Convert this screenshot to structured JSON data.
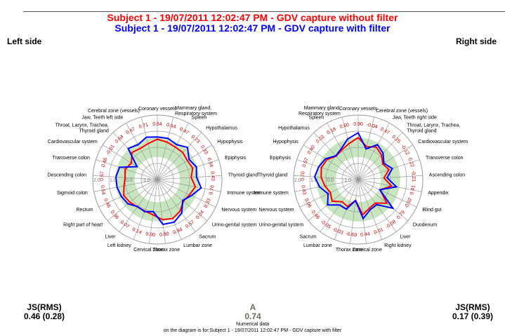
{
  "titles": {
    "without_filter": "Subject 1 - 19/07/2011 12:02:47 PM - GDV capture without filter",
    "with_filter": "Subject 1 - 19/07/2011 12:02:47 PM - GDV capture with filter"
  },
  "colors": {
    "without_filter": "#ff0000",
    "with_filter": "#0000ff",
    "band": "#c7e6c0",
    "grid": "#9a9a9a",
    "value_labels": "#cc0000",
    "center_text": "#6e6e5a"
  },
  "side_labels": {
    "left": "Left side",
    "right": "Right side"
  },
  "summary": {
    "left": {
      "label": "JS(RMS)",
      "value": "0.46 (0.28)"
    },
    "right": {
      "label": "JS(RMS)",
      "value": "0.17 (0.39)"
    },
    "center": {
      "label": "A",
      "value": "0.74",
      "caption": "Numerical data",
      "note": "on the diagram is for:Subject 1 - 19/07/2011 12:02:47 PM - GDV capture with filter"
    }
  },
  "chart_data": [
    {
      "type": "radar",
      "title": "Left side",
      "scale_labels": [
        "2.0",
        "1.0",
        "0.0",
        "-1.0"
      ],
      "band": [
        -0.6,
        0.6
      ],
      "categories": [
        "Coronary vessels",
        "Mammary gland, Respiratory system",
        "Spleen",
        "Hypothalamus",
        "Hypophysis",
        "Epiphysis",
        "Thyroid gland",
        "Immune system",
        "Nervous system",
        "Urino-genital system",
        "Sacrum",
        "Lumbar zone",
        "Thorax zone",
        "Cervical zone",
        "Left kidney",
        "Liver",
        "Right part of heart",
        "Rectum",
        "Sigmoid colon",
        "Descending colon",
        "Transverse colon",
        "Cardiovascular system",
        "Throat, Larynx, Trachea, Thyroid gland",
        "Jaw, Teeth left side",
        "Cerebral zone (vessels)"
      ],
      "value_labels": [
        "0.64",
        "0.64",
        "0.47",
        "0.73",
        "0.33",
        "0.54",
        "0.43",
        "0.76",
        "0.33",
        "0.04",
        "0.57",
        "0.84",
        "0.80",
        "0.00",
        "0.14",
        "0.07",
        "0.36",
        "0.46",
        "0.54",
        "0.57",
        "0.46",
        "-0.51",
        "0.64",
        "0.47",
        "0.71"
      ],
      "series": [
        {
          "name": "GDV capture without filter",
          "values": [
            0.5,
            0.4,
            0.3,
            0.3,
            0.2,
            0.3,
            0.1,
            0.4,
            0.2,
            0.1,
            0.4,
            0.6,
            0.5,
            0.2,
            0.1,
            0.1,
            0.2,
            0.3,
            0.1,
            0.0,
            0.1,
            -0.1,
            0.3,
            0.2,
            0.3
          ]
        },
        {
          "name": "GDV capture with filter",
          "values": [
            0.64,
            0.64,
            0.47,
            0.73,
            0.33,
            0.54,
            0.43,
            0.76,
            0.33,
            0.04,
            0.57,
            0.84,
            0.8,
            0.0,
            0.14,
            0.07,
            0.36,
            0.46,
            0.54,
            0.57,
            0.46,
            -0.51,
            0.64,
            0.47,
            0.71
          ]
        }
      ]
    },
    {
      "type": "radar",
      "title": "Right side",
      "scale_labels": [
        "2.0",
        "1.0",
        "0.0",
        "-1.0"
      ],
      "band": [
        -0.6,
        0.6
      ],
      "categories": [
        "Coronary vessels",
        "Cerebral zone (vessels)",
        "Jaw, Teeth right side",
        "Throat, Larynx, Trachea, Thyroid gland",
        "Cardiovascular system",
        "Transverse colon",
        "Ascending colon",
        "Appendix",
        "Blind gut",
        "Duodenum",
        "Liver",
        "Right kidney",
        "Cervical zone",
        "Thorax zone",
        "Lumbar zone",
        "Sacrum",
        "Urino-genital system",
        "Nervous system",
        "Immune system",
        "Thyroid gland",
        "Epiphysis",
        "Hypophysis",
        "Hypothalamus",
        "Spleen",
        "Mammary gland, Respiratory system"
      ],
      "value_labels": [
        "0.90",
        "-0.04",
        "0.47",
        "0.25",
        "-0.12",
        "0.22",
        "-0.21",
        "0.41",
        "-0.52",
        "0.79",
        "-0.08",
        "0.01",
        "0.44",
        "-0.69",
        "-0.03",
        "-0.05",
        "0.46",
        "0.06",
        "0.43",
        "0.70",
        "0.57",
        "0.40",
        "0.02",
        "0.18",
        "0.60"
      ],
      "series": [
        {
          "name": "GDV capture without filter",
          "values": [
            0.6,
            0.1,
            0.3,
            0.1,
            -0.2,
            0.0,
            -0.4,
            0.1,
            -0.5,
            0.3,
            -0.2,
            -0.1,
            0.2,
            -0.7,
            -0.2,
            -0.3,
            0.1,
            -0.1,
            0.1,
            0.3,
            0.4,
            0.3,
            0.0,
            0.1,
            0.3
          ]
        },
        {
          "name": "GDV capture with filter",
          "values": [
            0.9,
            -0.04,
            0.47,
            0.25,
            -0.12,
            0.22,
            -0.21,
            0.41,
            -0.52,
            0.79,
            -0.08,
            0.01,
            0.44,
            -0.69,
            -0.03,
            -0.05,
            0.46,
            0.06,
            0.43,
            0.7,
            0.57,
            0.4,
            0.02,
            0.18,
            0.6
          ]
        }
      ]
    }
  ]
}
